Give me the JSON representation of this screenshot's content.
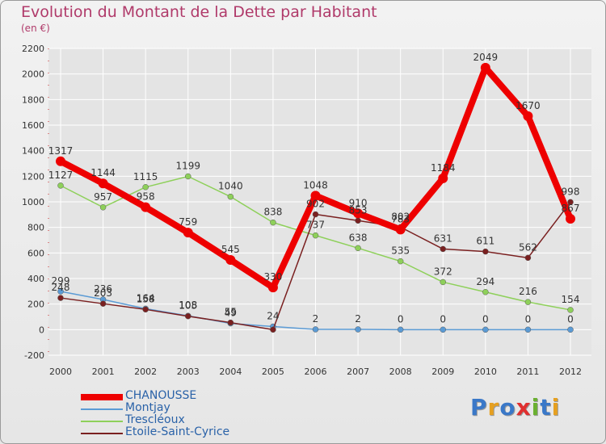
{
  "page": {
    "title": "Evolution du Montant de la Dette par Habitant",
    "subtitle": "(en €)",
    "logo": "Proxiti"
  },
  "colors": {
    "title": "#b03a6a",
    "legend_text": "#2a62a8",
    "grid": "#ffffff",
    "axis_text": "#333333",
    "logo_letters": [
      "#3a78c8",
      "#e6a020",
      "#3a78c8",
      "#e03030",
      "#6ab030",
      "#3a78c8",
      "#e6a020"
    ]
  },
  "chart_data": {
    "type": "line",
    "title": "Evolution du Montant de la Dette par Habitant",
    "subtitle": "(en €)",
    "x": [
      "2000",
      "2001",
      "2002",
      "2003",
      "2004",
      "2005",
      "2006",
      "2007",
      "2008",
      "2009",
      "2010",
      "2011",
      "2012"
    ],
    "ylim": [
      -200,
      2200
    ],
    "yticks": [
      -200,
      0,
      200,
      400,
      600,
      800,
      1000,
      1200,
      1400,
      1600,
      1800,
      2000,
      2200
    ],
    "grid": true,
    "legend_position": "bottom-left",
    "series": [
      {
        "name": "CHANOUSSE",
        "color": "#ee0000",
        "values": [
          1317,
          1144,
          958,
          759,
          545,
          330,
          1048,
          910,
          783,
          1184,
          2049,
          1670,
          867
        ],
        "labels": [
          "1317",
          "1144",
          "958",
          "759",
          "545",
          "330",
          "1048",
          "910",
          "783",
          "1184",
          "2049",
          "1670",
          "867"
        ]
      },
      {
        "name": "Montjay",
        "color": "#5b9bd5",
        "values": [
          299,
          236,
          164,
          108,
          49,
          24,
          2,
          2,
          0,
          0,
          0,
          0,
          0
        ],
        "labels": [
          "299",
          "236",
          "164",
          "108",
          "49",
          "24",
          "2",
          "2",
          "0",
          "0",
          "0",
          "0",
          "0"
        ]
      },
      {
        "name": "Trescléoux",
        "color": "#8ed05a",
        "values": [
          1127,
          957,
          1115,
          1199,
          1040,
          838,
          737,
          638,
          535,
          372,
          294,
          216,
          154
        ],
        "labels": [
          "1127",
          "957",
          "1115",
          "1199",
          "1040",
          "838",
          "737",
          "638",
          "535",
          "372",
          "294",
          "216",
          "154"
        ]
      },
      {
        "name": "Etoile-Saint-Cyrice",
        "color": "#7a2020",
        "values": [
          248,
          203,
          158,
          105,
          55,
          0,
          902,
          853,
          802,
          631,
          611,
          562,
          998
        ],
        "labels": [
          "248",
          "203",
          "158",
          "105",
          "55",
          "",
          "902",
          "853",
          "802",
          "631",
          "611",
          "562",
          "998"
        ]
      }
    ]
  }
}
